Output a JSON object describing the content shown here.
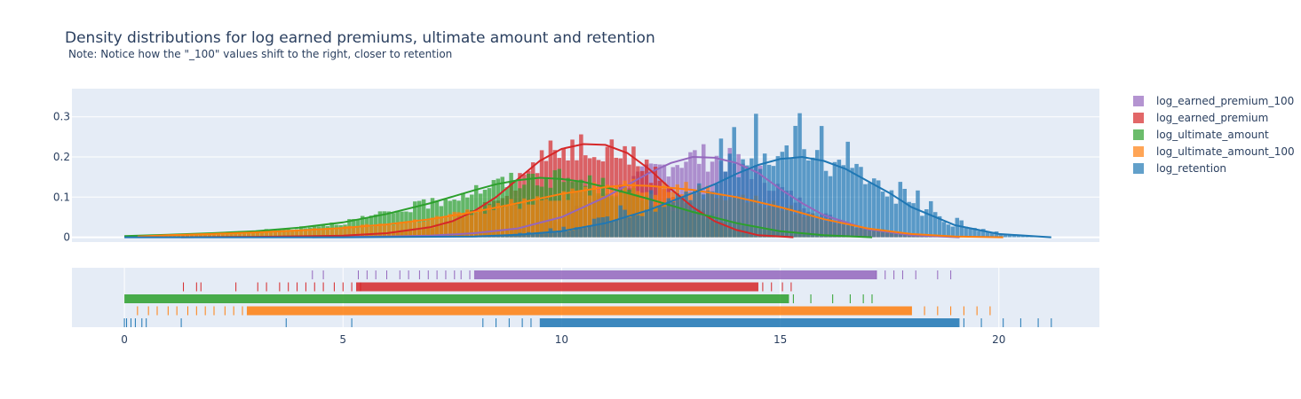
{
  "chart_data": {
    "type": "area",
    "title": "Density distributions for log earned premiums, ultimate amount and retention",
    "subtitle": "Note: Notice how the \"_100\" values shift to the right, closer to retention",
    "xlabel": "",
    "ylabel": "",
    "xlim": [
      -1.2,
      22.3
    ],
    "ylim": [
      -0.012,
      0.37
    ],
    "x_ticks": [
      0,
      5,
      10,
      15,
      20
    ],
    "y_ticks": [
      0,
      0.1,
      0.2,
      0.3
    ],
    "x_tick_labels": [
      "0",
      "5",
      "10",
      "15",
      "20"
    ],
    "y_tick_labels": [
      "0",
      "0.1",
      "0.2",
      "0.3"
    ],
    "grid": true,
    "legend_position": "right",
    "series": [
      {
        "name": "log_earned_premium_100",
        "color": "#9467bd",
        "range": [
          4.3,
          19.1
        ],
        "curve_x": [
          4.3,
          6,
          7,
          8,
          9,
          10,
          11,
          11.5,
          12,
          12.5,
          13,
          13.5,
          14,
          14.5,
          15,
          15.5,
          16,
          17,
          18,
          19.1
        ],
        "curve_y": [
          0,
          0.002,
          0.004,
          0.01,
          0.022,
          0.05,
          0.1,
          0.13,
          0.16,
          0.185,
          0.2,
          0.198,
          0.185,
          0.16,
          0.12,
          0.085,
          0.055,
          0.02,
          0.005,
          0
        ],
        "rug_sparse": [
          4.3,
          4.55,
          5.35,
          5.55,
          5.75,
          6.0,
          6.3,
          6.5,
          6.75,
          6.95,
          7.15,
          7.35,
          7.55,
          7.7,
          7.9,
          17.2,
          17.4,
          17.6,
          17.8,
          18.1,
          18.6,
          18.9
        ],
        "rug_dense": [
          8.0,
          17.2
        ]
      },
      {
        "name": "log_earned_premium",
        "color": "#d62728",
        "range": [
          1.3,
          15.3
        ],
        "curve_x": [
          1.3,
          3,
          5,
          6,
          7,
          7.5,
          8,
          8.5,
          9,
          9.5,
          10,
          10.5,
          11,
          11.5,
          12,
          12.5,
          13,
          13.5,
          14,
          14.5,
          15.3
        ],
        "curve_y": [
          0,
          0.001,
          0.004,
          0.01,
          0.025,
          0.04,
          0.065,
          0.1,
          0.145,
          0.19,
          0.22,
          0.232,
          0.23,
          0.21,
          0.17,
          0.12,
          0.075,
          0.04,
          0.018,
          0.005,
          0
        ],
        "rug_sparse": [
          1.35,
          1.65,
          1.75,
          2.55,
          3.05,
          3.25,
          3.55,
          3.75,
          3.95,
          4.15,
          4.35,
          4.55,
          4.8,
          5.0,
          5.2,
          5.4,
          14.6,
          14.8,
          15.05,
          15.25
        ],
        "rug_dense": [
          5.3,
          14.5
        ]
      },
      {
        "name": "log_ultimate_amount",
        "color": "#2ca02c",
        "range": [
          0,
          17.1
        ],
        "curve_x": [
          0,
          1,
          2,
          3,
          4,
          5,
          6,
          7,
          8,
          8.5,
          9,
          9.5,
          10,
          10.5,
          11,
          12,
          13,
          14,
          15,
          16,
          17.1
        ],
        "curve_y": [
          0.003,
          0.006,
          0.01,
          0.015,
          0.024,
          0.037,
          0.058,
          0.085,
          0.117,
          0.132,
          0.142,
          0.148,
          0.145,
          0.138,
          0.125,
          0.095,
          0.063,
          0.035,
          0.015,
          0.005,
          0
        ],
        "rug_sparse": [
          15.3,
          15.7,
          16.2,
          16.6,
          16.9,
          17.1
        ],
        "rug_dense": [
          0,
          15.2
        ]
      },
      {
        "name": "log_ultimate_amount_100",
        "color": "#ff7f0e",
        "range": [
          0.3,
          20.1
        ],
        "curve_x": [
          0.3,
          1,
          2,
          3,
          4,
          5,
          6,
          7,
          8,
          9,
          10,
          11,
          11.5,
          12,
          13,
          14,
          15,
          16,
          17,
          18,
          19,
          20.1
        ],
        "curve_y": [
          0.002,
          0.005,
          0.008,
          0.012,
          0.017,
          0.023,
          0.032,
          0.045,
          0.063,
          0.085,
          0.108,
          0.125,
          0.13,
          0.128,
          0.118,
          0.1,
          0.075,
          0.045,
          0.022,
          0.008,
          0.002,
          0
        ],
        "rug_sparse": [
          0.3,
          0.55,
          0.75,
          1.0,
          1.2,
          1.45,
          1.65,
          1.85,
          2.05,
          2.3,
          2.5,
          2.7,
          18.0,
          18.3,
          18.6,
          18.9,
          19.2,
          19.5,
          19.8
        ],
        "rug_dense": [
          2.8,
          18.0
        ]
      },
      {
        "name": "log_retention",
        "color": "#1f77b4",
        "range": [
          0,
          21.2
        ],
        "curve_x": [
          0,
          5,
          8,
          9,
          10,
          11,
          12,
          13,
          13.5,
          14,
          14.5,
          15,
          15.5,
          16,
          16.5,
          17,
          17.5,
          18,
          19,
          20,
          21.2
        ],
        "curve_y": [
          0,
          0,
          0.002,
          0.006,
          0.015,
          0.035,
          0.068,
          0.11,
          0.132,
          0.158,
          0.18,
          0.195,
          0.2,
          0.19,
          0.17,
          0.14,
          0.11,
          0.075,
          0.03,
          0.008,
          0
        ],
        "rug_sparse": [
          0,
          0.05,
          0.15,
          0.25,
          0.4,
          0.5,
          1.3,
          3.7,
          5.2,
          8.2,
          8.5,
          8.8,
          9.1,
          9.3,
          19.2,
          19.6,
          20.1,
          20.5,
          20.9,
          21.2
        ],
        "rug_dense": [
          9.5,
          19.1
        ]
      }
    ]
  }
}
